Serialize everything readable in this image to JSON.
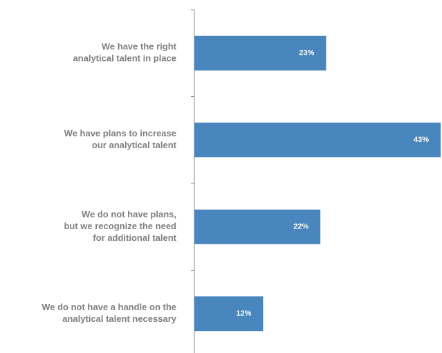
{
  "chart_data": {
    "type": "bar",
    "orientation": "horizontal",
    "categories": [
      "We have the right\nanalytical talent in place",
      "We have plans to increase\nour analytical talent",
      "We do not have plans,\nbut we recognize the need\nfor additional talent",
      "We do not have a handle on the\nanalytical talent necessary"
    ],
    "values": [
      23,
      43,
      22,
      12
    ],
    "value_labels": [
      "23%",
      "43%",
      "22%",
      "12%"
    ],
    "color": "#4a86be"
  }
}
